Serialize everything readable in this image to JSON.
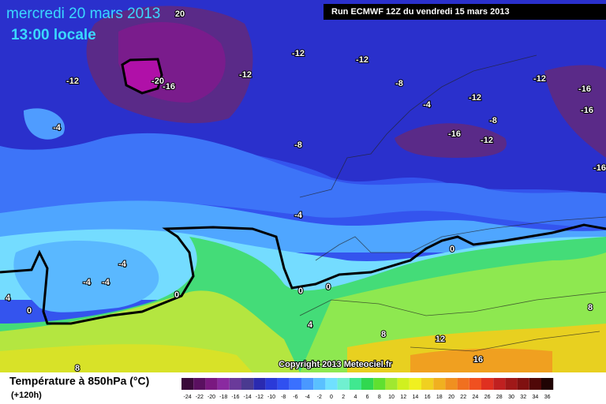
{
  "header": {
    "date": "mercredi 20 mars 2013",
    "time": "13:00 locale",
    "run": "Run ECMWF 12Z du vendredi 15 mars 2013"
  },
  "map": {
    "contour_labels": [
      "20",
      "-20",
      "-16",
      "-12",
      "-12",
      "-12",
      "-12",
      "-8",
      "-4",
      "-12",
      "-8",
      "-16",
      "-12",
      "-12",
      "-16",
      "-16",
      "-16",
      "-4",
      "-8",
      "-4",
      "-4",
      "-4",
      "-4",
      "0",
      "0",
      "4",
      "0",
      "0",
      "0",
      "4",
      "8",
      "12",
      "16",
      "8",
      "8"
    ],
    "copyright": "Copyright 2013 Meteociel.fr"
  },
  "legend": {
    "title": "Température à 850hPa (°C)",
    "lead": "(+120h)",
    "scale": [
      -24,
      -22,
      -20,
      -18,
      -16,
      -14,
      -12,
      -10,
      -8,
      -6,
      -4,
      -2,
      0,
      2,
      4,
      6,
      8,
      10,
      12,
      14,
      16,
      18,
      20,
      22,
      24,
      26,
      28,
      30,
      32,
      34,
      36
    ]
  }
}
